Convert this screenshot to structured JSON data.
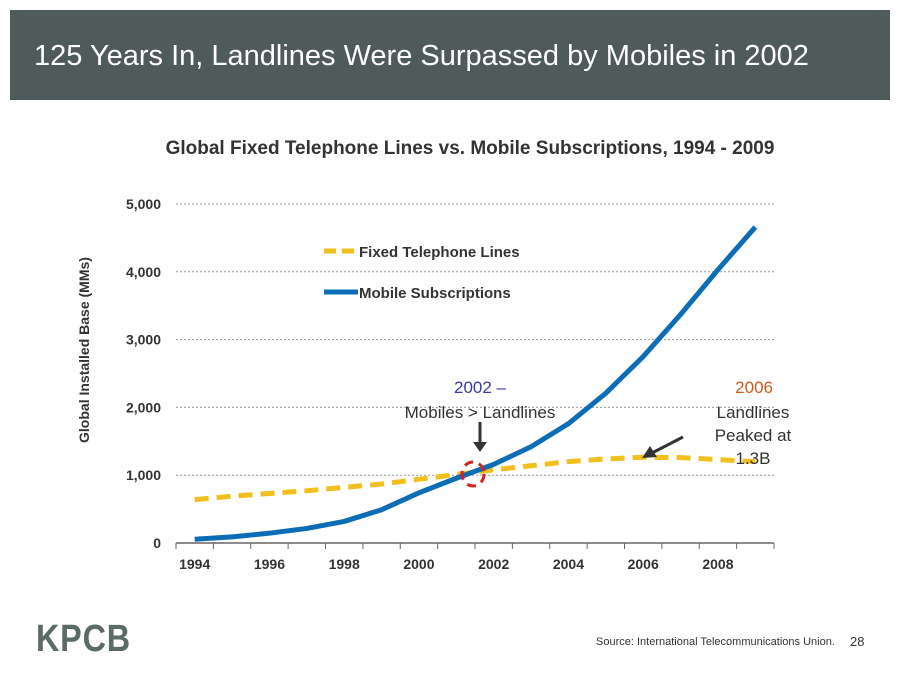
{
  "header": {
    "title": "125 Years In, Landlines Were Surpassed by Mobiles in 2002"
  },
  "footer": {
    "logo": "KPCB",
    "source": "Source: International Telecommunications Union.",
    "page": "28"
  },
  "chart_data": {
    "type": "line",
    "title": "Global Fixed Telephone Lines vs. Mobile Subscriptions, 1994 - 2009",
    "xlabel": "",
    "ylabel": "Global Installed Base (MMs)",
    "ylim": [
      0,
      5000
    ],
    "yticks": [
      "0",
      "1,000",
      "2,000",
      "3,000",
      "4,000",
      "5,000"
    ],
    "xticks": [
      "1994",
      "1996",
      "1998",
      "2000",
      "2002",
      "2004",
      "2006",
      "2008"
    ],
    "x": [
      1994,
      1995,
      1996,
      1997,
      1998,
      1999,
      2000,
      2001,
      2002,
      2003,
      2004,
      2005,
      2006,
      2007,
      2008,
      2009
    ],
    "series": [
      {
        "name": "Fixed Telephone Lines",
        "color": "#f2c01e",
        "style": "dashed",
        "values": [
          640,
          690,
          730,
          770,
          820,
          870,
          940,
          1010,
          1080,
          1140,
          1200,
          1240,
          1265,
          1260,
          1230,
          1200
        ]
      },
      {
        "name": "Mobile Subscriptions",
        "color": "#0a6db5",
        "style": "solid",
        "values": [
          55,
          90,
          145,
          215,
          318,
          490,
          740,
          955,
          1160,
          1420,
          1760,
          2210,
          2750,
          3370,
          4030,
          4660
        ]
      }
    ],
    "legend": "top-center",
    "annotations": [
      {
        "year": "2002 –",
        "text": "Mobiles > Landlines",
        "year_color": "#3a3aa8"
      },
      {
        "year": "2006",
        "lines": [
          "Landlines",
          "Peaked at",
          "1.3B"
        ],
        "year_color": "#d05a1a"
      }
    ],
    "grid": true
  }
}
